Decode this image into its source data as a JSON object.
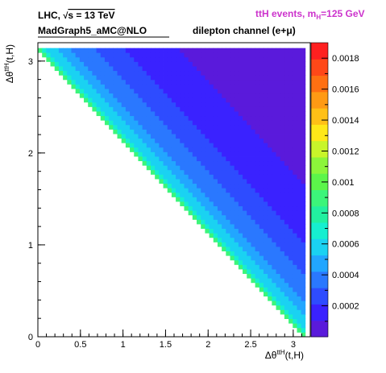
{
  "header": {
    "line1_prefix": "LHC, ",
    "line1_sqrt": "√",
    "line1_suffix": "s = 13 TeV",
    "line2": "MadGraph5_aMC@NLO",
    "channel": "dilepton channel (e+μ)",
    "process_prefix": "ttH events, m",
    "process_sub": "H",
    "process_suffix": "=125 GeV",
    "process_color": "#cc33cc"
  },
  "chart_data": {
    "type": "heatmap",
    "xlabel_base": "Δθ",
    "xlabel_sup": "ttH",
    "xlabel_tail": "(t,H)",
    "ylabel_base": "Δθ",
    "ylabel_sup": "ttH",
    "ylabel_tail": "(t,H)",
    "xlim": [
      0,
      3.2
    ],
    "ylim": [
      0,
      3.2
    ],
    "x_ticks": [
      0,
      0.5,
      1,
      1.5,
      2,
      2.5,
      3
    ],
    "x_tick_labels": [
      "0",
      "0.5",
      "1",
      "1.5",
      "2",
      "2.5",
      "3"
    ],
    "y_ticks": [
      0,
      1,
      2,
      3
    ],
    "y_tick_labels": [
      "0",
      "1",
      "2",
      "3"
    ],
    "z_range": [
      0,
      0.0019
    ],
    "z_ticks": [
      0.0002,
      0.0004,
      0.0006,
      0.0008,
      0.001,
      0.0012,
      0.0014,
      0.0016,
      0.0018
    ],
    "z_tick_labels": [
      "0.0002",
      "0.0004",
      "0.0006",
      "0.0008",
      "0.001",
      "0.0012",
      "0.0014",
      "0.0016",
      "0.0018"
    ],
    "support": "filled upper-right of the anti-diagonal x + y = π; empty lower-left",
    "peak_density": 0.0019,
    "diagonal_band_density": 0.00065,
    "far_corner_density": 3e-05,
    "palette": [
      "#5a1adb",
      "#3a22ff",
      "#2e4cff",
      "#2a78ff",
      "#22a6ff",
      "#1ad2f2",
      "#16efd0",
      "#22f0a0",
      "#3cf57a",
      "#5cf54a",
      "#8cf53a",
      "#c8f52a",
      "#ffe818",
      "#ffc016",
      "#ff9a14",
      "#ff7012",
      "#ff4818",
      "#ff2020"
    ]
  }
}
